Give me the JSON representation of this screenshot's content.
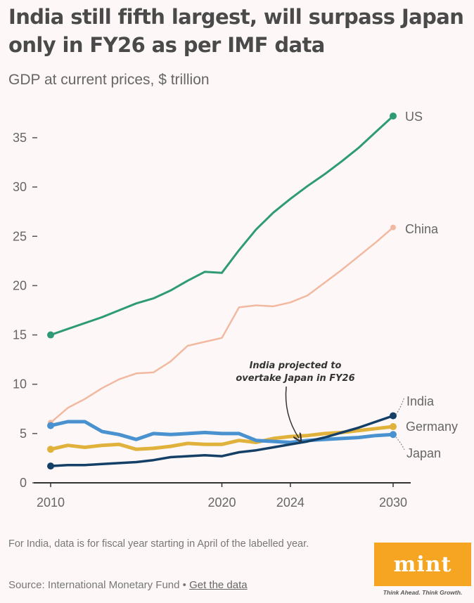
{
  "header": {
    "title": "India still fifth largest, will surpass Japan only in FY26 as per IMF data",
    "subtitle": "GDP at current prices, $ trillion"
  },
  "footer": {
    "footnote": "For India, data is for fiscal year starting in April of the labelled year.",
    "source_prefix": "Source: International Monetary Fund • ",
    "source_link": "Get the data",
    "logo_text": "mint",
    "logo_tagline": "Think Ahead. Think Growth.",
    "logo_color": "#f5a522"
  },
  "chart_data": {
    "type": "line",
    "title": "India still fifth largest, will surpass Japan only in FY26 as per IMF data",
    "subtitle": "GDP at current prices, $ trillion",
    "xlabel": "",
    "ylabel": "GDP at current prices, $ trillion",
    "xlim": [
      2010,
      2030
    ],
    "ylim": [
      0,
      37.5
    ],
    "x_ticks": [
      2010,
      2020,
      2024,
      2030
    ],
    "y_ticks": [
      0,
      5,
      10,
      15,
      20,
      25,
      30,
      35
    ],
    "grid": false,
    "legend": "direct-labels-right",
    "x": [
      2010,
      2011,
      2012,
      2013,
      2014,
      2015,
      2016,
      2017,
      2018,
      2019,
      2020,
      2021,
      2022,
      2023,
      2024,
      2025,
      2026,
      2027,
      2028,
      2029,
      2030
    ],
    "series": [
      {
        "name": "US",
        "color": "#2e9b76",
        "width": 3,
        "values": [
          15.0,
          15.6,
          16.2,
          16.8,
          17.5,
          18.2,
          18.7,
          19.5,
          20.5,
          21.4,
          21.3,
          23.6,
          25.7,
          27.4,
          28.8,
          30.1,
          31.3,
          32.6,
          34.0,
          35.6,
          37.2
        ]
      },
      {
        "name": "China",
        "color": "#f2b9a0",
        "width": 2.5,
        "values": [
          6.1,
          7.6,
          8.5,
          9.6,
          10.5,
          11.1,
          11.2,
          12.3,
          13.9,
          14.3,
          14.7,
          17.8,
          18.0,
          17.9,
          18.3,
          19.0,
          20.3,
          21.6,
          23.0,
          24.4,
          25.9
        ]
      },
      {
        "name": "Germany",
        "color": "#e0b23c",
        "width": 5,
        "values": [
          3.4,
          3.8,
          3.6,
          3.8,
          3.9,
          3.4,
          3.5,
          3.7,
          4.0,
          3.9,
          3.9,
          4.3,
          4.1,
          4.5,
          4.7,
          4.8,
          5.0,
          5.1,
          5.3,
          5.5,
          5.7
        ]
      },
      {
        "name": "Japan",
        "color": "#4a92cf",
        "width": 5,
        "values": [
          5.8,
          6.2,
          6.2,
          5.2,
          4.9,
          4.4,
          5.0,
          4.9,
          5.0,
          5.1,
          5.0,
          5.0,
          4.3,
          4.2,
          4.1,
          4.3,
          4.4,
          4.5,
          4.6,
          4.8,
          4.9
        ]
      },
      {
        "name": "India",
        "color": "#143f66",
        "width": 3.5,
        "values": [
          1.7,
          1.8,
          1.8,
          1.9,
          2.0,
          2.1,
          2.3,
          2.6,
          2.7,
          2.8,
          2.7,
          3.1,
          3.3,
          3.6,
          3.9,
          4.2,
          4.6,
          5.1,
          5.6,
          6.2,
          6.8
        ]
      }
    ],
    "annotations": [
      {
        "text_line1": "India projected to",
        "text_line2": "overtake Japan in FY26",
        "points_to_year": 2024.5,
        "points_to_value": 4.1
      }
    ]
  }
}
